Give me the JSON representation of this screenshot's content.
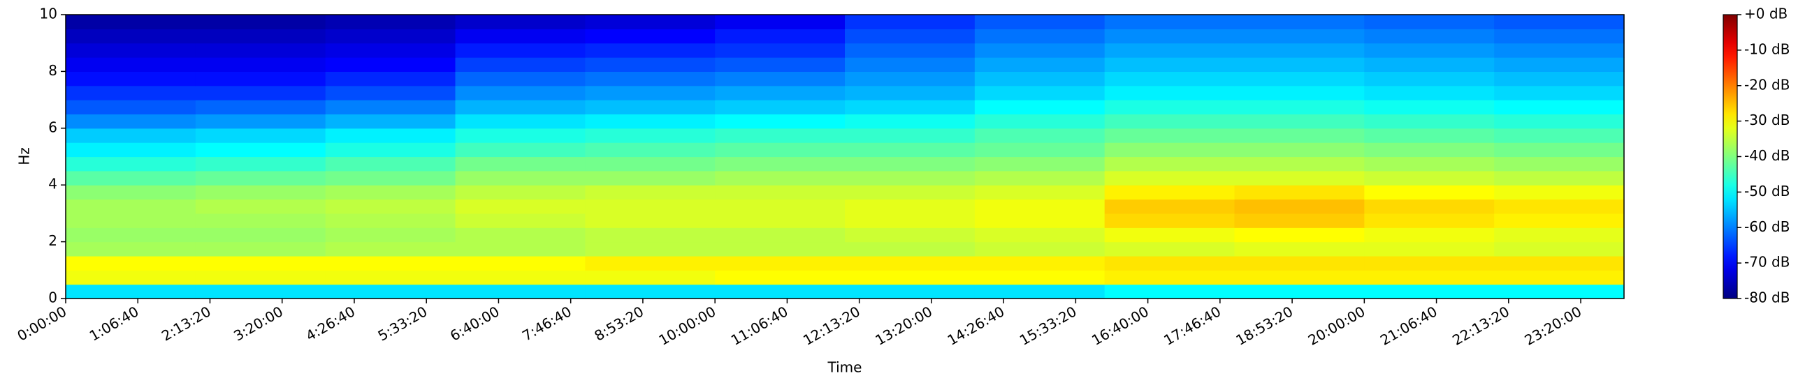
{
  "chart_data": {
    "type": "heatmap",
    "xlabel": "Time",
    "ylabel": "Hz",
    "colormap": "jet",
    "xbins": [
      0,
      7200,
      14400,
      21600,
      28800,
      36000,
      43200,
      50400,
      57600,
      64800,
      72000,
      79200,
      86400
    ],
    "ybins": [
      0,
      0.5,
      1,
      1.5,
      2,
      2.5,
      3,
      3.5,
      4,
      4.5,
      5,
      5.5,
      6,
      6.5,
      7,
      7.5,
      8,
      8.5,
      9,
      9.5,
      10
    ],
    "values": [
      [
        -52,
        -52,
        -52,
        -52,
        -52,
        -52,
        -52,
        -52,
        -50,
        -50,
        -50,
        -50
      ],
      [
        -31,
        -31,
        -31,
        -31,
        -31,
        -30,
        -30,
        -30,
        -29,
        -29,
        -29,
        -29
      ],
      [
        -30,
        -30,
        -30,
        -30,
        -29,
        -29,
        -29,
        -29,
        -28,
        -28,
        -28,
        -28
      ],
      [
        -37,
        -37,
        -36,
        -36,
        -35,
        -35,
        -35,
        -34,
        -33,
        -32,
        -32,
        -33
      ],
      [
        -38,
        -38,
        -37,
        -36,
        -35,
        -35,
        -34,
        -33,
        -31,
        -30,
        -31,
        -32
      ],
      [
        -37,
        -37,
        -36,
        -34,
        -33,
        -33,
        -32,
        -31,
        -27,
        -26,
        -28,
        -29
      ],
      [
        -37,
        -36,
        -35,
        -33,
        -33,
        -33,
        -32,
        -31,
        -26,
        -25,
        -27,
        -28
      ],
      [
        -39,
        -38,
        -37,
        -35,
        -34,
        -34,
        -34,
        -33,
        -29,
        -28,
        -30,
        -31
      ],
      [
        -43,
        -42,
        -41,
        -38,
        -38,
        -37,
        -37,
        -36,
        -33,
        -33,
        -34,
        -35
      ],
      [
        -47,
        -46,
        -44,
        -41,
        -41,
        -40,
        -40,
        -39,
        -36,
        -36,
        -37,
        -38
      ],
      [
        -51,
        -50,
        -48,
        -45,
        -44,
        -43,
        -43,
        -42,
        -39,
        -39,
        -40,
        -41
      ],
      [
        -54,
        -53,
        -51,
        -48,
        -47,
        -46,
        -46,
        -44,
        -42,
        -42,
        -43,
        -44
      ],
      [
        -59,
        -58,
        -56,
        -52,
        -51,
        -50,
        -49,
        -47,
        -45,
        -45,
        -46,
        -47
      ],
      [
        -63,
        -62,
        -60,
        -56,
        -55,
        -54,
        -53,
        -50,
        -48,
        -48,
        -49,
        -50
      ],
      [
        -66,
        -66,
        -64,
        -59,
        -58,
        -57,
        -56,
        -53,
        -51,
        -51,
        -52,
        -53
      ],
      [
        -69,
        -69,
        -67,
        -62,
        -61,
        -60,
        -58,
        -55,
        -53,
        -53,
        -54,
        -55
      ],
      [
        -71,
        -71,
        -70,
        -65,
        -64,
        -63,
        -60,
        -57,
        -55,
        -55,
        -56,
        -57
      ],
      [
        -73,
        -73,
        -72,
        -68,
        -67,
        -66,
        -62,
        -59,
        -57,
        -57,
        -58,
        -59
      ],
      [
        -75,
        -75,
        -74,
        -71,
        -70,
        -68,
        -64,
        -61,
        -59,
        -59,
        -60,
        -61
      ],
      [
        -77,
        -77,
        -76,
        -74,
        -73,
        -71,
        -66,
        -63,
        -61,
        -61,
        -62,
        -63
      ]
    ],
    "xlim": [
      0,
      86400
    ],
    "xticks": [
      {
        "value": 0,
        "label": "0:00:00"
      },
      {
        "value": 4000,
        "label": "1:06:40"
      },
      {
        "value": 8000,
        "label": "2:13:20"
      },
      {
        "value": 12000,
        "label": "3:20:00"
      },
      {
        "value": 16000,
        "label": "4:26:40"
      },
      {
        "value": 20000,
        "label": "5:33:20"
      },
      {
        "value": 24000,
        "label": "6:40:00"
      },
      {
        "value": 28000,
        "label": "7:46:40"
      },
      {
        "value": 32000,
        "label": "8:53:20"
      },
      {
        "value": 36000,
        "label": "10:00:00"
      },
      {
        "value": 40000,
        "label": "11:06:40"
      },
      {
        "value": 44000,
        "label": "12:13:20"
      },
      {
        "value": 48000,
        "label": "13:20:00"
      },
      {
        "value": 52000,
        "label": "14:26:40"
      },
      {
        "value": 56000,
        "label": "15:33:20"
      },
      {
        "value": 60000,
        "label": "16:40:00"
      },
      {
        "value": 64000,
        "label": "17:46:40"
      },
      {
        "value": 68000,
        "label": "18:53:20"
      },
      {
        "value": 72000,
        "label": "20:00:00"
      },
      {
        "value": 76000,
        "label": "21:06:40"
      },
      {
        "value": 80000,
        "label": "22:13:20"
      },
      {
        "value": 84000,
        "label": "23:20:00"
      }
    ],
    "ylim": [
      0,
      10
    ],
    "yticks": [
      0,
      2,
      4,
      6,
      8,
      10
    ],
    "clim": [
      -80,
      0
    ],
    "cticks": [
      {
        "value": 0,
        "label": "+0 dB"
      },
      {
        "value": -10,
        "label": "-10 dB"
      },
      {
        "value": -20,
        "label": "-20 dB"
      },
      {
        "value": -30,
        "label": "-30 dB"
      },
      {
        "value": -40,
        "label": "-40 dB"
      },
      {
        "value": -50,
        "label": "-50 dB"
      },
      {
        "value": -60,
        "label": "-60 dB"
      },
      {
        "value": -70,
        "label": "-70 dB"
      },
      {
        "value": -80,
        "label": "-80 dB"
      }
    ]
  }
}
